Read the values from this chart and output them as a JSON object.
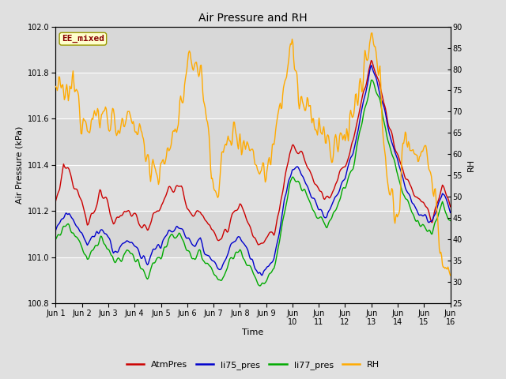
{
  "title": "Air Pressure and RH",
  "xlabel": "Time",
  "ylabel_left": "Air Pressure (kPa)",
  "ylabel_right": "RH",
  "annotation": "EE_mixed",
  "xlim": [
    0,
    15
  ],
  "ylim_left": [
    100.8,
    102.0
  ],
  "ylim_right": [
    25,
    90
  ],
  "yticks_left": [
    100.8,
    101.0,
    101.2,
    101.4,
    101.6,
    101.8,
    102.0
  ],
  "yticks_right": [
    25,
    30,
    35,
    40,
    45,
    50,
    55,
    60,
    65,
    70,
    75,
    80,
    85,
    90
  ],
  "xtick_positions": [
    0,
    1,
    2,
    3,
    4,
    5,
    6,
    7,
    8,
    9,
    10,
    11,
    12,
    13,
    14,
    15
  ],
  "xtick_labels": [
    "Jun 1",
    "Jun 2",
    "Jun 3",
    "Jun 4",
    "Jun 5",
    "Jun 6",
    "Jun 7",
    "Jun 8",
    "Jun 9",
    "Jun\n10",
    "Jun\n11",
    "Jun\n12",
    "Jun\n13",
    "Jun\n14",
    "Jun\n15",
    "Jun\n16"
  ],
  "colors": {
    "AtmPres": "#cc0000",
    "li75_pres": "#0000cc",
    "li77_pres": "#00aa00",
    "RH": "#ffaa00"
  },
  "legend_labels": [
    "AtmPres",
    "li75_pres",
    "li77_pres",
    "RH"
  ],
  "fig_bg": "#e0e0e0",
  "plot_bg": "#e8e8e8",
  "band_color": "#d0d0d0",
  "grid_color": "#ffffff",
  "annotation_bg": "#ffffcc",
  "annotation_border": "#999900",
  "annotation_text_color": "#880000",
  "linewidth": 1.0,
  "n_points": 500,
  "seed": 12345
}
